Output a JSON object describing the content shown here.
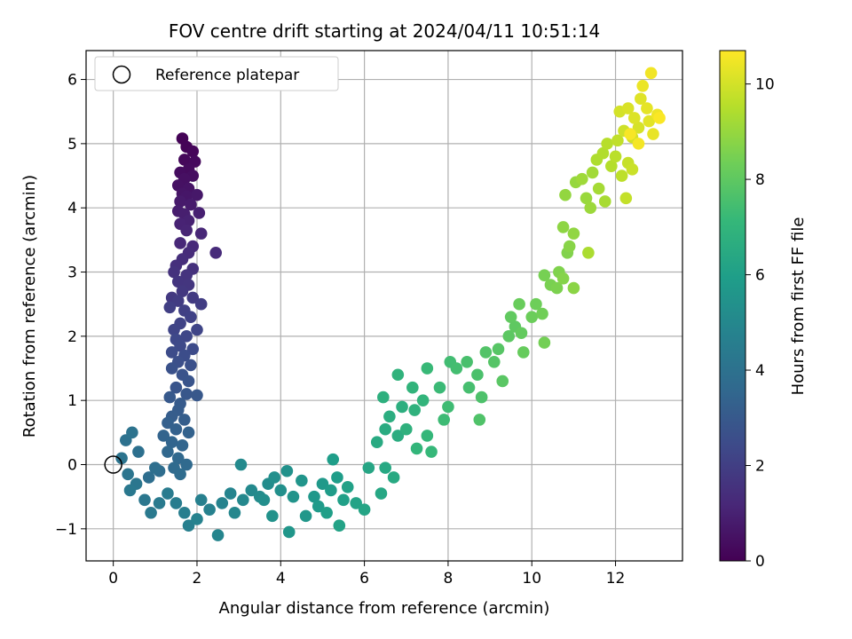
{
  "chart_data": {
    "type": "scatter",
    "title": "FOV centre drift starting at 2024/04/11 10:51:14",
    "xlabel": "Angular distance from reference (arcmin)",
    "ylabel": "Rotation from reference (arcmin)",
    "xlim": [
      -0.65,
      13.6
    ],
    "ylim": [
      -1.5,
      6.45
    ],
    "xticks": [
      0,
      2,
      4,
      6,
      8,
      10,
      12
    ],
    "yticks": [
      -1,
      0,
      1,
      2,
      3,
      4,
      5,
      6
    ],
    "grid": true,
    "legend": {
      "position": "top-left",
      "entries": [
        "Reference platepar"
      ]
    },
    "reference_point": {
      "x": 0,
      "y": 0,
      "marker": "open-circle"
    },
    "colorbar": {
      "label": "Hours from first FF file",
      "range": [
        0,
        10.7
      ],
      "ticks": [
        0,
        2,
        4,
        6,
        8,
        10
      ],
      "colormap": "viridis",
      "stops": [
        "#440154",
        "#482878",
        "#3e4989",
        "#31688e",
        "#26828e",
        "#1f9e89",
        "#35b779",
        "#6ece58",
        "#b5de2b",
        "#fde725"
      ]
    },
    "series": [
      {
        "points": [
          [
            1.65,
            5.08,
            0.05
          ],
          [
            1.75,
            4.95,
            0.1
          ],
          [
            1.9,
            4.88,
            0.15
          ],
          [
            1.7,
            4.75,
            0.2
          ],
          [
            1.95,
            4.72,
            0.25
          ],
          [
            1.8,
            4.6,
            0.3
          ],
          [
            1.6,
            4.55,
            0.35
          ],
          [
            1.9,
            4.5,
            0.4
          ],
          [
            1.7,
            4.45,
            0.45
          ],
          [
            1.55,
            4.35,
            0.5
          ],
          [
            1.8,
            4.3,
            0.55
          ],
          [
            1.65,
            4.22,
            0.6
          ],
          [
            1.75,
            4.18,
            0.65
          ],
          [
            2.0,
            4.2,
            0.7
          ],
          [
            1.6,
            4.1,
            0.75
          ],
          [
            1.85,
            4.05,
            0.8
          ],
          [
            1.55,
            3.95,
            0.85
          ],
          [
            1.7,
            3.9,
            0.9
          ],
          [
            2.05,
            3.92,
            0.95
          ],
          [
            1.8,
            3.8,
            1.0
          ],
          [
            1.6,
            3.75,
            1.05
          ],
          [
            1.75,
            3.65,
            1.1
          ],
          [
            2.1,
            3.6,
            1.15
          ],
          [
            1.6,
            3.45,
            1.2
          ],
          [
            1.9,
            3.4,
            1.25
          ],
          [
            2.45,
            3.3,
            1.3
          ],
          [
            1.8,
            3.3,
            1.35
          ],
          [
            1.65,
            3.2,
            1.4
          ],
          [
            1.5,
            3.1,
            1.45
          ],
          [
            1.9,
            3.05,
            1.5
          ],
          [
            1.45,
            3.0,
            1.55
          ],
          [
            1.75,
            2.95,
            1.6
          ],
          [
            1.55,
            2.85,
            1.65
          ],
          [
            1.8,
            2.8,
            1.7
          ],
          [
            1.65,
            2.7,
            1.75
          ],
          [
            1.4,
            2.6,
            1.8
          ],
          [
            1.9,
            2.6,
            1.85
          ],
          [
            1.55,
            2.55,
            1.9
          ],
          [
            2.1,
            2.5,
            1.95
          ],
          [
            1.35,
            2.45,
            2.0
          ],
          [
            1.7,
            2.4,
            2.05
          ],
          [
            1.85,
            2.3,
            2.1
          ],
          [
            1.6,
            2.2,
            2.15
          ],
          [
            1.45,
            2.1,
            2.2
          ],
          [
            2.0,
            2.1,
            2.25
          ],
          [
            1.75,
            2.0,
            2.3
          ],
          [
            1.5,
            1.95,
            2.35
          ],
          [
            1.6,
            1.85,
            2.4
          ],
          [
            1.9,
            1.8,
            2.45
          ],
          [
            1.4,
            1.75,
            2.5
          ],
          [
            1.7,
            1.7,
            2.55
          ],
          [
            1.55,
            1.6,
            2.6
          ],
          [
            1.85,
            1.55,
            2.65
          ],
          [
            1.4,
            1.5,
            2.7
          ],
          [
            1.65,
            1.4,
            2.75
          ],
          [
            1.8,
            1.3,
            2.8
          ],
          [
            1.5,
            1.2,
            2.85
          ],
          [
            1.75,
            1.1,
            2.9
          ],
          [
            2.0,
            1.08,
            2.95
          ],
          [
            1.35,
            1.05,
            3.0
          ],
          [
            1.6,
            0.95,
            3.05
          ],
          [
            1.55,
            0.85,
            3.1
          ],
          [
            1.4,
            0.75,
            3.15
          ],
          [
            1.7,
            0.7,
            3.2
          ],
          [
            1.3,
            0.65,
            3.25
          ],
          [
            1.5,
            0.55,
            3.3
          ],
          [
            1.8,
            0.5,
            3.35
          ],
          [
            1.2,
            0.45,
            3.4
          ],
          [
            1.4,
            0.35,
            3.45
          ],
          [
            1.65,
            0.3,
            3.5
          ],
          [
            1.3,
            0.2,
            3.55
          ],
          [
            1.55,
            0.1,
            3.6
          ],
          [
            1.75,
            0.0,
            3.65
          ],
          [
            1.45,
            -0.05,
            3.7
          ],
          [
            1.6,
            -0.15,
            3.75
          ],
          [
            1.1,
            -0.1,
            3.8
          ],
          [
            0.85,
            -0.2,
            3.85
          ],
          [
            1.0,
            -0.05,
            3.9
          ],
          [
            0.6,
            0.2,
            3.95
          ],
          [
            0.3,
            0.38,
            4.0
          ],
          [
            0.45,
            0.5,
            4.05
          ],
          [
            0.2,
            0.1,
            4.1
          ],
          [
            0.35,
            -0.15,
            4.15
          ],
          [
            0.55,
            -0.3,
            4.2
          ],
          [
            0.75,
            -0.55,
            4.25
          ],
          [
            0.4,
            -0.4,
            4.3
          ],
          [
            0.9,
            -0.75,
            4.35
          ],
          [
            1.1,
            -0.6,
            4.4
          ],
          [
            1.3,
            -0.45,
            4.45
          ],
          [
            1.5,
            -0.6,
            4.5
          ],
          [
            1.7,
            -0.75,
            4.55
          ],
          [
            1.8,
            -0.95,
            4.6
          ],
          [
            2.1,
            -0.55,
            4.65
          ],
          [
            2.3,
            -0.7,
            4.7
          ],
          [
            2.0,
            -0.85,
            4.75
          ],
          [
            2.6,
            -0.6,
            4.8
          ],
          [
            2.8,
            -0.45,
            4.85
          ],
          [
            2.5,
            -1.1,
            4.9
          ],
          [
            2.9,
            -0.75,
            4.95
          ],
          [
            3.1,
            -0.55,
            5.0
          ],
          [
            3.3,
            -0.4,
            5.05
          ],
          [
            3.05,
            0.0,
            5.1
          ],
          [
            3.5,
            -0.5,
            5.15
          ],
          [
            3.7,
            -0.3,
            5.2
          ],
          [
            3.6,
            -0.55,
            5.25
          ],
          [
            3.85,
            -0.2,
            5.3
          ],
          [
            4.0,
            -0.4,
            5.35
          ],
          [
            4.15,
            -0.1,
            5.4
          ],
          [
            3.8,
            -0.8,
            5.45
          ],
          [
            4.3,
            -0.5,
            5.5
          ],
          [
            4.5,
            -0.25,
            5.55
          ],
          [
            4.2,
            -1.05,
            5.6
          ],
          [
            4.6,
            -0.8,
            5.65
          ],
          [
            4.8,
            -0.5,
            5.7
          ],
          [
            5.0,
            -0.3,
            5.75
          ],
          [
            4.9,
            -0.65,
            5.8
          ],
          [
            5.2,
            -0.4,
            5.85
          ],
          [
            5.35,
            -0.2,
            5.9
          ],
          [
            5.25,
            0.08,
            5.95
          ],
          [
            5.1,
            -0.75,
            6.0
          ],
          [
            5.5,
            -0.55,
            6.05
          ],
          [
            5.6,
            -0.35,
            6.1
          ],
          [
            5.4,
            -0.95,
            6.15
          ],
          [
            5.8,
            -0.6,
            6.2
          ],
          [
            6.0,
            -0.7,
            6.25
          ],
          [
            6.1,
            -0.05,
            6.3
          ],
          [
            6.4,
            -0.45,
            6.35
          ],
          [
            6.5,
            -0.05,
            6.4
          ],
          [
            6.7,
            -0.2,
            6.45
          ],
          [
            6.3,
            0.35,
            6.5
          ],
          [
            6.5,
            0.55,
            6.55
          ],
          [
            6.8,
            0.45,
            6.6
          ],
          [
            6.6,
            0.75,
            6.65
          ],
          [
            6.9,
            0.9,
            6.7
          ],
          [
            6.45,
            1.05,
            6.75
          ],
          [
            7.0,
            0.55,
            6.8
          ],
          [
            7.2,
            0.85,
            6.85
          ],
          [
            6.8,
            1.4,
            6.9
          ],
          [
            7.15,
            1.2,
            6.95
          ],
          [
            7.4,
            1.0,
            7.0
          ],
          [
            7.25,
            0.25,
            7.05
          ],
          [
            7.5,
            0.45,
            7.1
          ],
          [
            7.6,
            0.2,
            7.15
          ],
          [
            7.5,
            1.5,
            7.2
          ],
          [
            7.8,
            1.2,
            7.25
          ],
          [
            7.9,
            0.7,
            7.3
          ],
          [
            8.0,
            0.9,
            7.35
          ],
          [
            8.05,
            1.6,
            7.4
          ],
          [
            8.2,
            1.5,
            7.45
          ],
          [
            8.5,
            1.2,
            7.5
          ],
          [
            8.45,
            1.6,
            7.55
          ],
          [
            8.7,
            1.4,
            7.6
          ],
          [
            8.8,
            1.05,
            7.65
          ],
          [
            8.75,
            0.7,
            7.7
          ],
          [
            8.9,
            1.75,
            7.75
          ],
          [
            9.1,
            1.6,
            7.8
          ],
          [
            9.2,
            1.8,
            7.85
          ],
          [
            9.3,
            1.3,
            7.9
          ],
          [
            9.45,
            2.0,
            7.95
          ],
          [
            9.6,
            2.15,
            8.0
          ],
          [
            9.5,
            2.3,
            8.05
          ],
          [
            9.75,
            2.05,
            8.1
          ],
          [
            9.8,
            1.75,
            8.15
          ],
          [
            9.7,
            2.5,
            8.2
          ],
          [
            10.0,
            2.3,
            8.25
          ],
          [
            10.1,
            2.5,
            8.3
          ],
          [
            10.25,
            2.35,
            8.35
          ],
          [
            10.3,
            1.9,
            8.4
          ],
          [
            10.3,
            2.95,
            8.45
          ],
          [
            10.45,
            2.8,
            8.5
          ],
          [
            10.6,
            2.75,
            8.55
          ],
          [
            10.65,
            3.0,
            8.6
          ],
          [
            10.85,
            3.3,
            8.65
          ],
          [
            10.75,
            2.9,
            8.7
          ],
          [
            10.9,
            3.4,
            8.75
          ],
          [
            11.0,
            2.75,
            8.8
          ],
          [
            10.75,
            3.7,
            8.85
          ],
          [
            11.0,
            3.6,
            8.9
          ],
          [
            10.8,
            4.2,
            8.95
          ],
          [
            11.05,
            4.4,
            9.0
          ],
          [
            11.3,
            4.15,
            9.05
          ],
          [
            11.4,
            4.0,
            9.1
          ],
          [
            11.2,
            4.45,
            9.15
          ],
          [
            11.45,
            4.55,
            9.2
          ],
          [
            11.6,
            4.3,
            9.25
          ],
          [
            11.75,
            4.1,
            9.3
          ],
          [
            11.35,
            3.3,
            9.35
          ],
          [
            11.55,
            4.75,
            9.4
          ],
          [
            11.7,
            4.85,
            9.45
          ],
          [
            11.9,
            4.65,
            9.5
          ],
          [
            11.8,
            5.0,
            9.55
          ],
          [
            12.0,
            4.8,
            9.6
          ],
          [
            12.15,
            4.5,
            9.65
          ],
          [
            12.05,
            5.05,
            9.7
          ],
          [
            12.25,
            4.15,
            9.75
          ],
          [
            12.3,
            4.7,
            9.8
          ],
          [
            12.4,
            4.6,
            9.85
          ],
          [
            12.2,
            5.2,
            9.9
          ],
          [
            12.4,
            5.1,
            9.95
          ],
          [
            12.1,
            5.5,
            10.0
          ],
          [
            12.55,
            5.25,
            10.05
          ],
          [
            12.3,
            5.55,
            10.1
          ],
          [
            12.45,
            5.4,
            10.15
          ],
          [
            12.6,
            5.7,
            10.2
          ],
          [
            12.8,
            5.35,
            10.25
          ],
          [
            12.75,
            5.55,
            10.3
          ],
          [
            12.9,
            5.15,
            10.35
          ],
          [
            12.65,
            5.9,
            10.4
          ],
          [
            13.0,
            5.45,
            10.45
          ],
          [
            12.85,
            6.1,
            10.5
          ],
          [
            12.55,
            5.0,
            10.55
          ],
          [
            12.35,
            5.15,
            10.6
          ],
          [
            13.05,
            5.4,
            10.65
          ]
        ]
      }
    ]
  }
}
